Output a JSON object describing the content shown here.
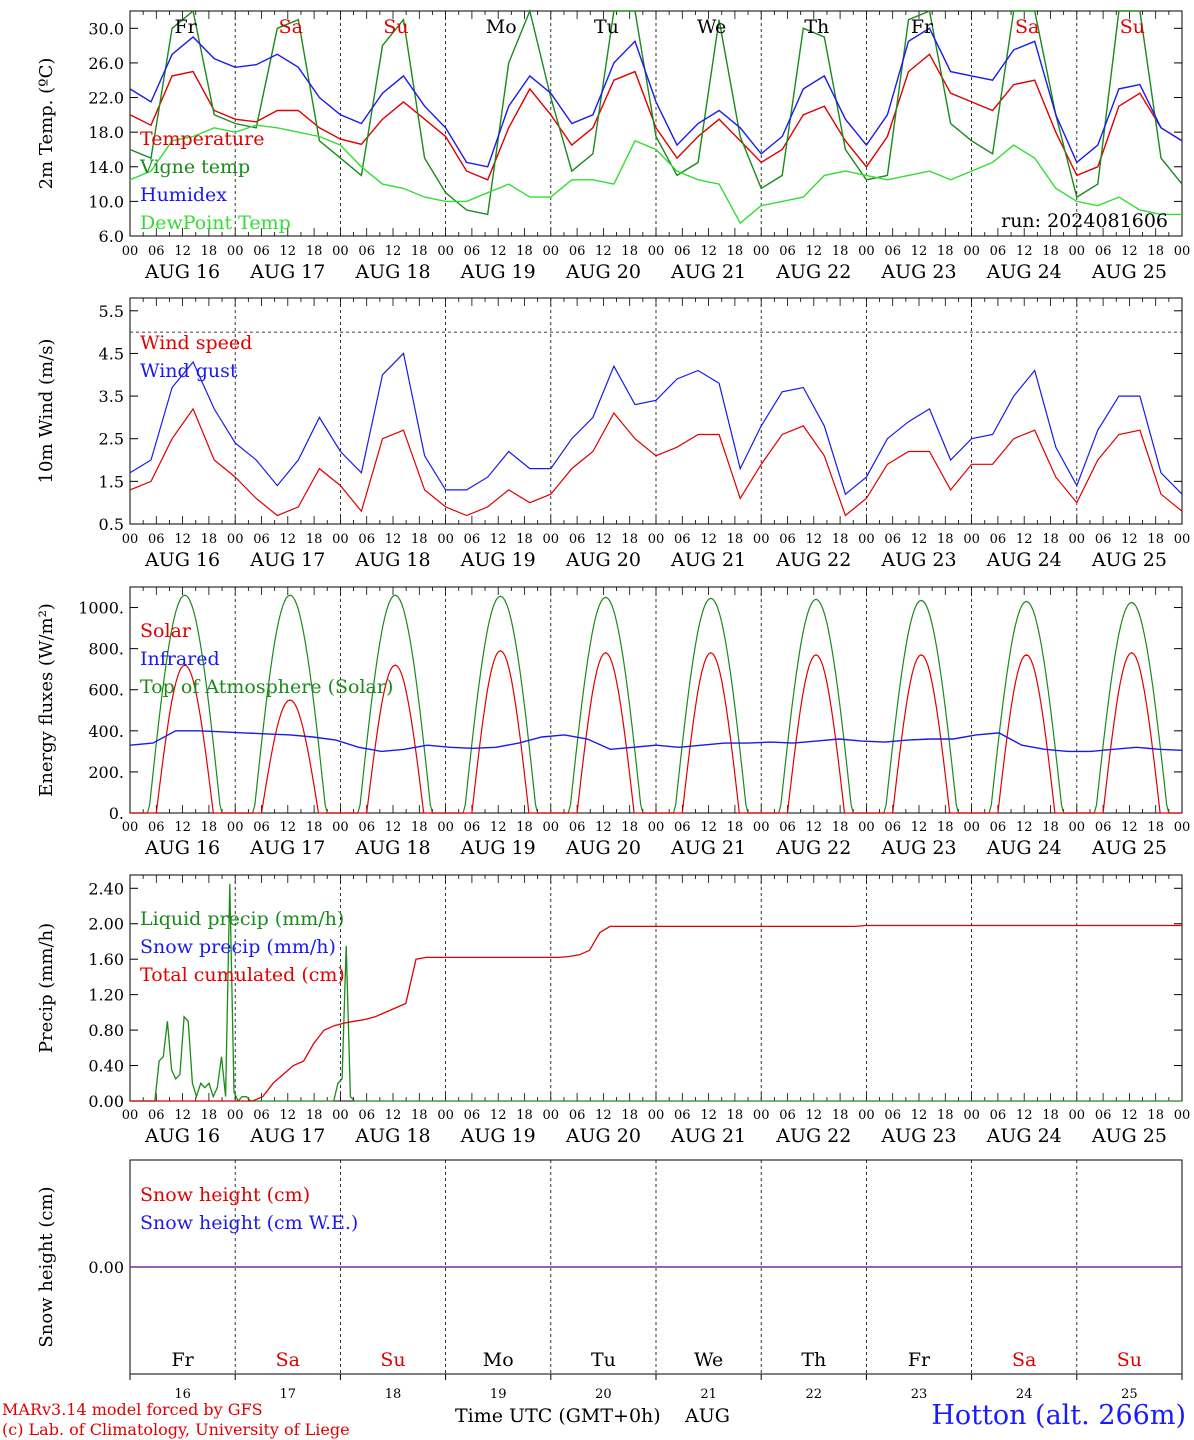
{
  "colors": {
    "red": "#e00000",
    "green": "#1a8a1a",
    "blue": "#1a1aee",
    "light_green": "#33dd33",
    "purple": "#7a2a9a",
    "weekend": "#e00000",
    "weekday": "#000000"
  },
  "footer": {
    "model_line": "MARv3.14 model forced by GFS",
    "copyright_line": "(c) Lab. of Climatology, University of Liege",
    "x_title": "Time UTC (GMT+0h)",
    "month": "AUG",
    "station": "Hotton (alt. 266m)"
  },
  "chart_data": [
    {
      "type": "line",
      "name": "temperature",
      "ylabel": "2m Temp. (ºC)",
      "ylim": [
        6.0,
        32.0
      ],
      "yticks": [
        "6.0",
        "10.0",
        "14.0",
        "18.0",
        "22.0",
        "26.0",
        "30.0"
      ],
      "run_label": "run: 2024081606",
      "day_names": [
        "Fr",
        "Sa",
        "Su",
        "Mo",
        "Tu",
        "We",
        "Th",
        "Fr",
        "Sa",
        "Su"
      ],
      "day_weekend": [
        false,
        true,
        true,
        false,
        false,
        false,
        false,
        false,
        true,
        true
      ],
      "date_labels": [
        "AUG 16",
        "AUG 17",
        "AUG 18",
        "AUG 19",
        "AUG 20",
        "AUG 21",
        "AUG 22",
        "AUG 23",
        "AUG 24",
        "AUG 25"
      ],
      "hour_ticks": [
        "00",
        "06",
        "12",
        "18"
      ],
      "x_hours_per_point": 6,
      "legend": [
        {
          "label": "Temperature",
          "color": "#e00000"
        },
        {
          "label": "Vigne temp",
          "color": "#1a8a1a"
        },
        {
          "label": "Humidex",
          "color": "#1a1aee"
        },
        {
          "label": "DewPoint Temp",
          "color": "#33dd33"
        }
      ],
      "series": [
        {
          "name": "Temperature",
          "color": "#e00000",
          "values": [
            20.0,
            18.8,
            24.5,
            25.0,
            20.5,
            19.5,
            19.2,
            20.5,
            20.5,
            18.5,
            17.2,
            16.6,
            19.5,
            21.5,
            19.5,
            17.5,
            13.5,
            12.5,
            18.5,
            23.0,
            20.0,
            16.5,
            18.5,
            24.0,
            25.0,
            18.5,
            15.0,
            17.5,
            19.5,
            17.0,
            14.5,
            16.0,
            20.0,
            21.0,
            17.0,
            14.0,
            17.5,
            25.0,
            27.0,
            22.5,
            21.5,
            20.5,
            23.5,
            24.0,
            18.0,
            13.0,
            14.0,
            21.0,
            22.5,
            18.5,
            17.0
          ]
        },
        {
          "name": "Vigne temp",
          "color": "#1a8a1a",
          "values": [
            16.0,
            15.0,
            30.0,
            32.0,
            20.0,
            19.0,
            18.5,
            30.0,
            31.0,
            17.0,
            15.0,
            13.0,
            28.0,
            31.0,
            15.0,
            11.0,
            9.0,
            8.5,
            26.0,
            32.0,
            22.0,
            13.5,
            15.5,
            32.0,
            32.0,
            17.5,
            13.0,
            14.5,
            31.0,
            17.5,
            11.5,
            13.0,
            30.0,
            29.0,
            16.0,
            12.5,
            13.0,
            31.0,
            32.0,
            19.0,
            17.0,
            15.5,
            32.0,
            32.0,
            20.0,
            10.5,
            12.0,
            32.0,
            32.0,
            15.0,
            12.0
          ]
        },
        {
          "name": "Humidex",
          "color": "#1a1aee",
          "values": [
            23.0,
            21.5,
            27.0,
            29.0,
            26.5,
            25.5,
            25.8,
            27.0,
            25.5,
            22.0,
            20.0,
            19.0,
            22.5,
            24.5,
            21.0,
            18.5,
            14.5,
            14.0,
            21.0,
            24.5,
            22.5,
            19.0,
            20.0,
            26.0,
            28.5,
            21.5,
            16.5,
            19.0,
            20.5,
            18.5,
            15.5,
            17.5,
            23.0,
            24.5,
            19.5,
            16.5,
            20.0,
            28.5,
            30.0,
            25.0,
            24.5,
            24.0,
            27.5,
            28.5,
            20.0,
            14.5,
            16.5,
            23.0,
            23.5,
            18.5,
            17.0
          ]
        },
        {
          "name": "DewPoint Temp",
          "color": "#33dd33",
          "values": [
            12.5,
            13.5,
            17.0,
            17.5,
            18.5,
            18.0,
            18.8,
            18.5,
            18.0,
            17.5,
            16.5,
            14.0,
            12.0,
            11.5,
            10.5,
            10.0,
            10.0,
            11.0,
            12.0,
            10.5,
            10.5,
            12.5,
            12.5,
            12.0,
            17.0,
            16.0,
            13.5,
            12.5,
            12.0,
            7.5,
            9.5,
            10.0,
            10.5,
            13.0,
            13.5,
            13.0,
            12.5,
            13.0,
            13.5,
            12.5,
            13.5,
            14.5,
            16.5,
            15.0,
            11.5,
            10.0,
            9.5,
            10.5,
            9.0,
            8.5,
            8.5
          ]
        }
      ]
    },
    {
      "type": "line",
      "name": "wind",
      "ylabel": "10m Wind (m/s)",
      "ylim": [
        0.5,
        5.8
      ],
      "yticks": [
        "0.5",
        "1.5",
        "2.5",
        "3.5",
        "4.5",
        "5.5"
      ],
      "reference_line": 5.0,
      "date_labels": [
        "AUG 16",
        "AUG 17",
        "AUG 18",
        "AUG 19",
        "AUG 20",
        "AUG 21",
        "AUG 22",
        "AUG 23",
        "AUG 24",
        "AUG 25"
      ],
      "hour_ticks": [
        "00",
        "06",
        "12",
        "18"
      ],
      "x_hours_per_point": 6,
      "legend": [
        {
          "label": "Wind speed",
          "color": "#e00000"
        },
        {
          "label": "Wind gust",
          "color": "#1a1aee"
        }
      ],
      "series": [
        {
          "name": "Wind speed",
          "color": "#e00000",
          "values": [
            1.3,
            1.5,
            2.5,
            3.2,
            2.0,
            1.6,
            1.1,
            0.7,
            0.9,
            1.8,
            1.4,
            0.8,
            2.5,
            2.7,
            1.3,
            0.9,
            0.7,
            0.9,
            1.3,
            1.0,
            1.2,
            1.8,
            2.2,
            3.1,
            2.5,
            2.1,
            2.3,
            2.6,
            2.6,
            1.1,
            1.9,
            2.6,
            2.8,
            2.1,
            0.7,
            1.1,
            1.9,
            2.2,
            2.2,
            1.3,
            1.9,
            1.9,
            2.5,
            2.7,
            1.6,
            1.0,
            2.0,
            2.6,
            2.7,
            1.2,
            0.8
          ]
        },
        {
          "name": "Wind gust",
          "color": "#1a1aee",
          "values": [
            1.7,
            2.0,
            3.7,
            4.3,
            3.2,
            2.4,
            2.0,
            1.4,
            2.0,
            3.0,
            2.2,
            1.7,
            4.0,
            4.5,
            2.1,
            1.3,
            1.3,
            1.6,
            2.2,
            1.8,
            1.8,
            2.5,
            3.0,
            4.2,
            3.3,
            3.4,
            3.9,
            4.1,
            3.8,
            1.8,
            2.8,
            3.6,
            3.7,
            2.8,
            1.2,
            1.6,
            2.5,
            2.9,
            3.2,
            2.0,
            2.5,
            2.6,
            3.5,
            4.1,
            2.3,
            1.4,
            2.7,
            3.5,
            3.5,
            1.7,
            1.2
          ]
        }
      ]
    },
    {
      "type": "line",
      "name": "energy",
      "ylabel": "Energy fluxes (W/m²)",
      "ylim": [
        0,
        1100
      ],
      "yticks": [
        "0.",
        "200.",
        "400.",
        "600.",
        "800.",
        "1000."
      ],
      "date_labels": [
        "AUG 16",
        "AUG 17",
        "AUG 18",
        "AUG 19",
        "AUG 20",
        "AUG 21",
        "AUG 22",
        "AUG 23",
        "AUG 24",
        "AUG 25"
      ],
      "hour_ticks": [
        "00",
        "06",
        "12",
        "18"
      ],
      "x_hours_per_point": 6,
      "legend": [
        {
          "label": "Solar",
          "color": "#e00000"
        },
        {
          "label": "Infrared",
          "color": "#1a1aee"
        },
        {
          "label": "Top of Atmosphere (Solar)",
          "color": "#1a8a1a"
        }
      ],
      "solar_peaks": [
        720,
        550,
        720,
        790,
        780,
        780,
        770,
        770,
        770,
        780
      ],
      "toa_peaks": [
        1060,
        1060,
        1060,
        1055,
        1050,
        1045,
        1040,
        1035,
        1030,
        1025
      ],
      "series": [
        {
          "name": "Infrared",
          "color": "#1a1aee",
          "values": [
            330,
            340,
            400,
            400,
            395,
            390,
            385,
            380,
            370,
            355,
            320,
            300,
            310,
            330,
            320,
            315,
            320,
            340,
            370,
            380,
            360,
            310,
            320,
            330,
            320,
            330,
            340,
            340,
            345,
            340,
            350,
            360,
            350,
            345,
            355,
            360,
            360,
            380,
            390,
            330,
            310,
            300,
            300,
            310,
            320,
            310,
            305
          ]
        }
      ]
    },
    {
      "type": "line",
      "name": "precip",
      "ylabel": "Precip (mm/h)",
      "ylim": [
        0,
        2.55
      ],
      "yticks": [
        "0.00",
        "0.40",
        "0.80",
        "1.20",
        "1.60",
        "2.00",
        "2.40"
      ],
      "date_labels": [
        "AUG 16",
        "AUG 17",
        "AUG 18",
        "AUG 19",
        "AUG 20",
        "AUG 21",
        "AUG 22",
        "AUG 23",
        "AUG 24",
        "AUG 25"
      ],
      "hour_ticks": [
        "00",
        "06",
        "12",
        "18"
      ],
      "x_hours_per_point": 6,
      "legend": [
        {
          "label": "Liquid precip (mm/h)",
          "color": "#1a8a1a"
        },
        {
          "label": "Snow precip (mm/h)",
          "color": "#1a1aee"
        },
        {
          "label": "Total cumulated (cm)",
          "color": "#e00000"
        }
      ],
      "series": [
        {
          "name": "Liquid precip (mm/h)",
          "color": "#1a8a1a",
          "values": [
            0,
            0,
            0,
            0,
            0,
            0,
            0,
            0.45,
            0.5,
            0.9,
            0.35,
            0.25,
            0.3,
            0.95,
            0.9,
            0.2,
            0.05,
            0.2,
            0.15,
            0.2,
            0.05,
            0.15,
            0.5,
            0.05,
            2.45,
            0.1,
            0,
            0.05,
            0.05,
            0,
            0,
            0,
            0,
            0,
            0,
            0,
            0,
            0,
            0,
            0,
            0,
            0,
            0,
            0,
            0,
            0,
            0,
            0,
            0,
            0,
            0.2,
            0.25,
            1.75,
            0.05,
            0,
            0,
            0,
            0,
            0,
            0,
            0,
            0,
            0,
            0,
            0,
            0,
            0,
            0,
            0,
            0,
            0,
            0,
            0,
            0,
            0,
            0,
            0,
            0,
            0,
            0,
            0,
            0,
            0,
            0,
            0,
            0,
            0,
            0,
            0,
            0,
            0,
            0,
            0,
            0,
            0,
            0,
            0,
            0,
            0,
            0,
            0,
            0,
            0,
            0,
            0,
            0,
            0,
            0,
            0,
            0,
            0,
            0,
            0,
            0,
            0,
            0,
            0,
            0,
            0,
            0,
            0,
            0,
            0,
            0,
            0,
            0,
            0,
            0,
            0,
            0,
            0,
            0,
            0,
            0,
            0,
            0,
            0,
            0,
            0,
            0,
            0,
            0,
            0,
            0,
            0,
            0,
            0,
            0,
            0,
            0,
            0,
            0,
            0,
            0,
            0,
            0,
            0,
            0,
            0,
            0,
            0,
            0,
            0,
            0,
            0,
            0,
            0,
            0,
            0,
            0,
            0,
            0,
            0,
            0,
            0,
            0,
            0,
            0,
            0,
            0,
            0,
            0,
            0,
            0,
            0,
            0,
            0,
            0,
            0,
            0,
            0,
            0,
            0,
            0,
            0,
            0,
            0,
            0,
            0,
            0,
            0,
            0,
            0,
            0,
            0,
            0,
            0,
            0,
            0,
            0,
            0,
            0,
            0,
            0,
            0,
            0,
            0,
            0,
            0,
            0,
            0,
            0,
            0,
            0,
            0,
            0,
            0,
            0,
            0,
            0,
            0,
            0,
            0,
            0,
            0,
            0,
            0,
            0,
            0,
            0,
            0,
            0,
            0,
            0,
            0,
            0,
            0,
            0,
            0,
            0,
            0,
            0,
            0,
            0
          ]
        },
        {
          "name": "Total cumulated (cm)",
          "color": "#e00000",
          "values": [
            0,
            0,
            0,
            0,
            0,
            0,
            0,
            0,
            0,
            0,
            0,
            0,
            0,
            0.05,
            0.2,
            0.3,
            0.4,
            0.45,
            0.65,
            0.8,
            0.85,
            0.88,
            0.9,
            0.92,
            0.95,
            1.0,
            1.05,
            1.1,
            1.6,
            1.62,
            1.62,
            1.62,
            1.62,
            1.62,
            1.62,
            1.62,
            1.62,
            1.62,
            1.62,
            1.62,
            1.62,
            1.62,
            1.62,
            1.63,
            1.65,
            1.7,
            1.9,
            1.97,
            1.97,
            1.97,
            1.97,
            1.97,
            1.97,
            1.97,
            1.97,
            1.97,
            1.97,
            1.97,
            1.97,
            1.97,
            1.97,
            1.97,
            1.97,
            1.97,
            1.97,
            1.97,
            1.97,
            1.97,
            1.97,
            1.97,
            1.97,
            1.97,
            1.98,
            1.98,
            1.98,
            1.98,
            1.98,
            1.98,
            1.98,
            1.98,
            1.98,
            1.98,
            1.98,
            1.98,
            1.98,
            1.98,
            1.98,
            1.98,
            1.98,
            1.98,
            1.98,
            1.98,
            1.98,
            1.98,
            1.98,
            1.98,
            1.98,
            1.98,
            1.98,
            1.98,
            1.98,
            1.98,
            1.98,
            1.98
          ]
        }
      ]
    },
    {
      "type": "line",
      "name": "snow",
      "ylabel": "Snow height (cm)",
      "ylim": [
        -1,
        1
      ],
      "yticks": [
        "0.00"
      ],
      "day_names": [
        "Fr",
        "Sa",
        "Su",
        "Mo",
        "Tu",
        "We",
        "Th",
        "Fr",
        "Sa",
        "Su"
      ],
      "day_weekend": [
        false,
        true,
        true,
        false,
        false,
        false,
        false,
        false,
        true,
        true
      ],
      "day_numbers": [
        "16",
        "17",
        "18",
        "19",
        "20",
        "21",
        "22",
        "23",
        "24",
        "25"
      ],
      "legend": [
        {
          "label": "Snow height (cm)",
          "color": "#e00000"
        },
        {
          "label": "Snow height (cm W.E.)",
          "color": "#1a1aee"
        }
      ],
      "series": [
        {
          "name": "Snow height (cm)",
          "color": "#7a2a9a",
          "values": [
            0,
            0
          ]
        }
      ]
    }
  ]
}
